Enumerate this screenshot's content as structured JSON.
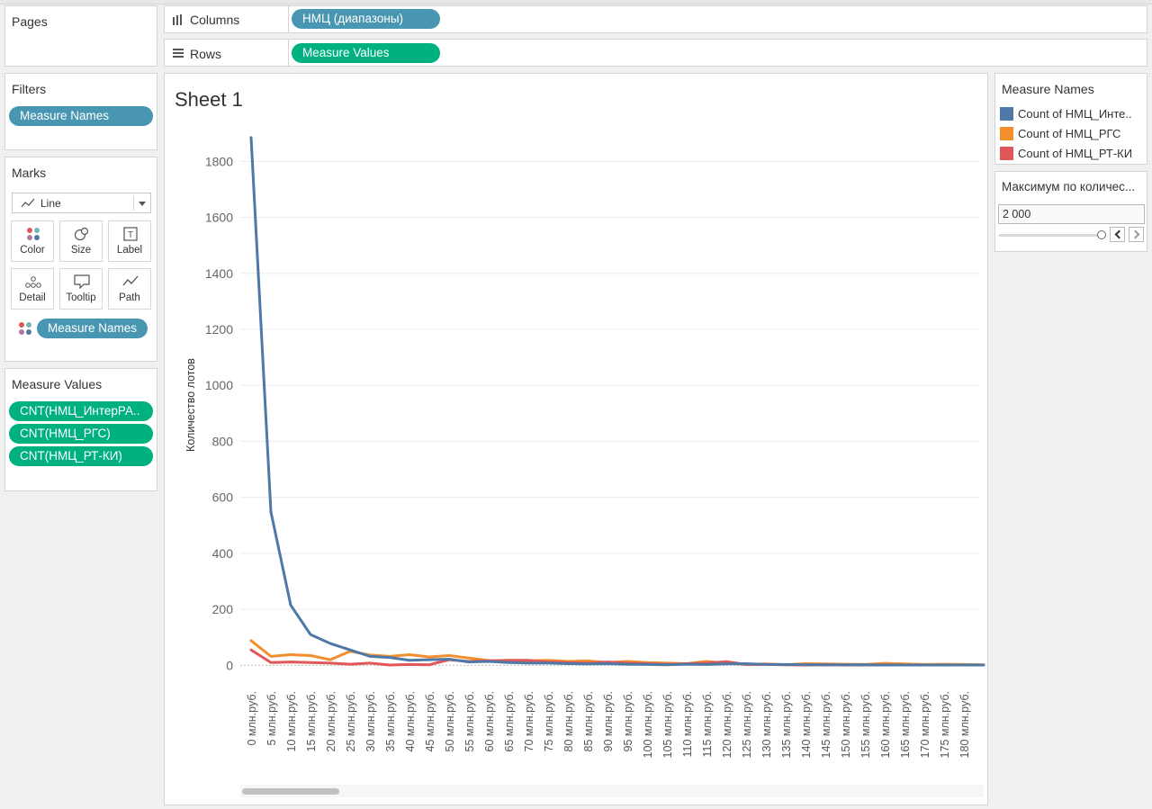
{
  "pages": {
    "title": "Pages"
  },
  "shelves": {
    "columns": {
      "label": "Columns",
      "pill": "НМЦ (диапазоны)"
    },
    "rows": {
      "label": "Rows",
      "pill": "Measure Values"
    }
  },
  "filters": {
    "title": "Filters",
    "pill": "Measure Names"
  },
  "marks": {
    "title": "Marks",
    "type": "Line",
    "buttons": [
      "Color",
      "Size",
      "Label",
      "Detail",
      "Tooltip",
      "Path"
    ],
    "color_pill": "Measure Names"
  },
  "measure_values": {
    "title": "Measure Values",
    "pills": [
      "CNT(НМЦ_ИнтерРА..",
      "CNT(НМЦ_РГС)",
      "CNT(НМЦ_РТ-КИ)"
    ]
  },
  "sheet": {
    "title": "Sheet 1"
  },
  "legend": {
    "title": "Measure Names",
    "items": [
      {
        "label": "Count of НМЦ_Инте..",
        "color": "#4e79a7"
      },
      {
        "label": "Count of НМЦ_РГС",
        "color": "#f28e2b"
      },
      {
        "label": "Count of НМЦ_РТ-КИ",
        "color": "#e15759"
      }
    ]
  },
  "max_filter": {
    "title": "Максимум по количес...",
    "value": "2 000"
  },
  "chart_data": {
    "type": "line",
    "ylabel": "Количество лотов",
    "xlabel": "",
    "ylim": [
      -60,
      1920
    ],
    "yticks": [
      0,
      200,
      400,
      600,
      800,
      1000,
      1200,
      1400,
      1600,
      1800
    ],
    "grid": true,
    "categories": [
      "0 млн.руб.",
      "5 млн.руб.",
      "10 млн.руб.",
      "15 млн.руб.",
      "20 млн.руб.",
      "25 млн.руб.",
      "30 млн.руб.",
      "35 млн.руб.",
      "40 млн.руб.",
      "45 млн.руб.",
      "50 млн.руб.",
      "55 млн.руб.",
      "60 млн.руб.",
      "65 млн.руб.",
      "70 млн.руб.",
      "75 млн.руб.",
      "80 млн.руб.",
      "85 млн.руб.",
      "90 млн.руб.",
      "95 млн.руб.",
      "100 млн.руб.",
      "105 млн.руб.",
      "110 млн.руб.",
      "115 млн.руб.",
      "120 млн.руб.",
      "125 млн.руб.",
      "130 млн.руб.",
      "135 млн.руб.",
      "140 млн.руб.",
      "145 млн.руб.",
      "150 млн.руб.",
      "155 млн.руб.",
      "160 млн.руб.",
      "165 млн.руб.",
      "170 млн.руб.",
      "175 млн.руб.",
      "180 млн.руб.",
      ""
    ],
    "series": [
      {
        "name": "Count of НМЦ_Инте..",
        "color": "#4e79a7",
        "values": [
          1885,
          548,
          215,
          110,
          78,
          55,
          32,
          28,
          18,
          20,
          22,
          12,
          14,
          10,
          8,
          8,
          6,
          5,
          6,
          4,
          3,
          2,
          4,
          3,
          5,
          6,
          3,
          3,
          2,
          2,
          2,
          2,
          1,
          1,
          1,
          1,
          1,
          1
        ]
      },
      {
        "name": "Count of НМЦ_РГС",
        "color": "#f28e2b",
        "values": [
          88,
          32,
          38,
          35,
          20,
          50,
          37,
          32,
          38,
          30,
          35,
          26,
          17,
          15,
          16,
          18,
          14,
          16,
          10,
          14,
          10,
          8,
          6,
          14,
          8,
          3,
          5,
          2,
          6,
          5,
          4,
          3,
          7,
          5,
          3,
          4,
          3,
          2
        ]
      },
      {
        "name": "Count of НМЦ_РТ-КИ",
        "color": "#e15759",
        "values": [
          55,
          10,
          12,
          10,
          8,
          4,
          8,
          1,
          3,
          2,
          20,
          14,
          16,
          18,
          18,
          12,
          10,
          8,
          12,
          8,
          6,
          4,
          6,
          8,
          13,
          3,
          3,
          2,
          1,
          2,
          1,
          1,
          1,
          1,
          1,
          1,
          1,
          1
        ]
      }
    ]
  }
}
